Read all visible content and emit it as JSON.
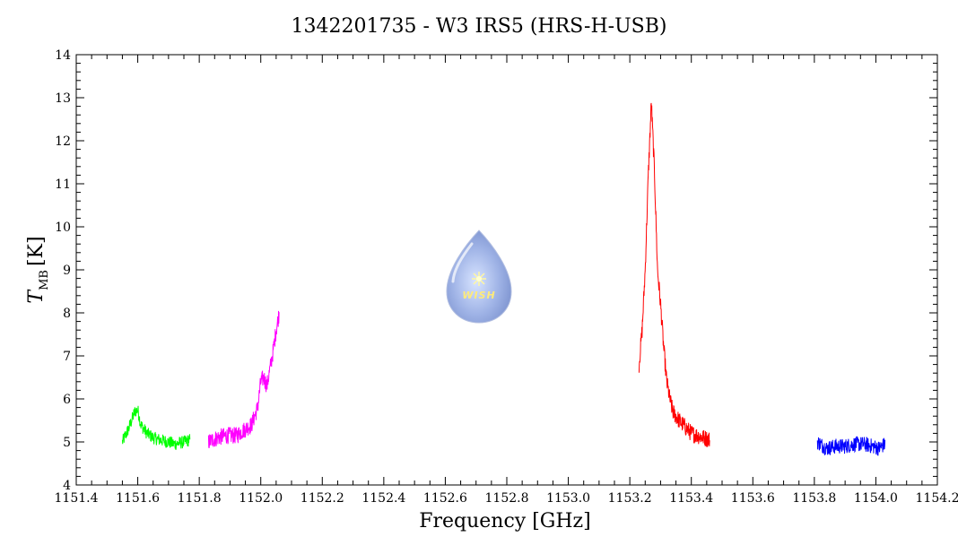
{
  "chart_data": {
    "type": "line",
    "title": "1342201735 - W3 IRS5 (HRS-H-USB)",
    "xlabel": "Frequency [GHz]",
    "ylabel_main": "T",
    "ylabel_sub": "MB",
    "ylabel_unit": "[K]",
    "xlim": [
      1151.4,
      1154.2
    ],
    "ylim": [
      4,
      14
    ],
    "xticks": [
      "1151.4",
      "1151.6",
      "1151.8",
      "1152.0",
      "1152.2",
      "1152.4",
      "1152.6",
      "1152.8",
      "1153.0",
      "1153.2",
      "1153.4",
      "1153.6",
      "1153.8",
      "1154.0",
      "1154.2"
    ],
    "yticks": [
      "4",
      "5",
      "6",
      "7",
      "8",
      "9",
      "10",
      "11",
      "12",
      "13",
      "14"
    ],
    "grid": false,
    "logo": "WISH",
    "series": [
      {
        "color": "#00ff00",
        "x": [
          1151.55,
          1151.57,
          1151.59,
          1151.6,
          1151.61,
          1151.63,
          1151.65,
          1151.67,
          1151.7,
          1151.72,
          1151.75,
          1151.77
        ],
        "values": [
          5.0,
          5.3,
          5.7,
          5.75,
          5.4,
          5.2,
          5.1,
          5.05,
          5.0,
          4.95,
          5.0,
          5.05
        ],
        "noise": 0.15
      },
      {
        "color": "#ff00ff",
        "x": [
          1151.83,
          1151.86,
          1151.89,
          1151.92,
          1151.95,
          1151.97,
          1151.99,
          1152.0,
          1152.01,
          1152.02,
          1152.03,
          1152.04,
          1152.05,
          1152.06
        ],
        "values": [
          5.0,
          5.1,
          5.15,
          5.15,
          5.3,
          5.4,
          5.8,
          6.4,
          6.5,
          6.3,
          6.7,
          7.1,
          7.6,
          8.0
        ],
        "noise": 0.2
      },
      {
        "color": "#ff0000",
        "x": [
          1153.23,
          1153.24,
          1153.25,
          1153.26,
          1153.27,
          1153.28,
          1153.29,
          1153.3,
          1153.31,
          1153.32,
          1153.33,
          1153.34,
          1153.36,
          1153.38,
          1153.4,
          1153.42,
          1153.44,
          1153.46
        ],
        "values": [
          6.8,
          7.6,
          9.0,
          11.2,
          12.9,
          11.3,
          9.0,
          8.2,
          7.2,
          6.4,
          6.0,
          5.7,
          5.5,
          5.35,
          5.2,
          5.15,
          5.1,
          5.05
        ],
        "noise": 0.2
      },
      {
        "color": "#0000ff",
        "x": [
          1153.81,
          1153.84,
          1153.87,
          1153.9,
          1153.93,
          1153.96,
          1153.99,
          1154.01,
          1154.03
        ],
        "values": [
          5.0,
          4.85,
          4.9,
          4.9,
          4.95,
          4.95,
          4.9,
          4.85,
          4.95
        ],
        "noise": 0.18
      }
    ]
  }
}
